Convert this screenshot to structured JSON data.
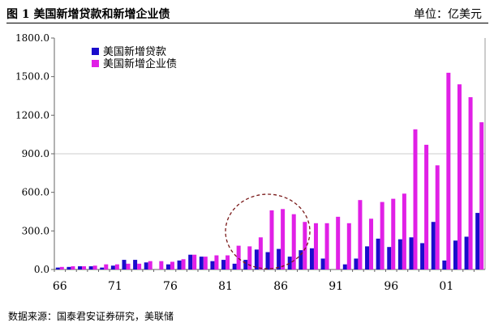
{
  "header": {
    "title": "图 1  美国新增贷款和新增企业债",
    "unit": "单位：亿美元"
  },
  "source": "数据来源：国泰君安证券研究，美联储",
  "chart_data": {
    "type": "bar",
    "title": "图 1  美国新增贷款和新增企业债",
    "ylim": [
      0,
      1800
    ],
    "yticks": [
      "0.0",
      "300.0",
      "600.0",
      "900.0",
      "1200.0",
      "1500.0",
      "1800.0"
    ],
    "xtick_labels": [
      "66",
      "71",
      "76",
      "81",
      "86",
      "91",
      "96",
      "01"
    ],
    "categories": [
      "66",
      "67",
      "68",
      "69",
      "70",
      "71",
      "72",
      "73",
      "74",
      "75",
      "76",
      "77",
      "78",
      "79",
      "80",
      "81",
      "82",
      "83",
      "84",
      "85",
      "86",
      "87",
      "88",
      "89",
      "90",
      "91",
      "92",
      "93",
      "94",
      "95",
      "96",
      "97",
      "98",
      "99",
      "00",
      "01",
      "02",
      "03",
      "04"
    ],
    "legend_position": "top-left",
    "series": [
      {
        "name": "美国新增贷款",
        "color": "#1a0ccc",
        "values": [
          15,
          20,
          25,
          25,
          15,
          30,
          75,
          75,
          55,
          0,
          40,
          70,
          115,
          100,
          65,
          75,
          45,
          75,
          155,
          135,
          160,
          100,
          150,
          165,
          85,
          0,
          40,
          85,
          180,
          240,
          175,
          235,
          250,
          205,
          370,
          70,
          225,
          255,
          440
        ]
      },
      {
        "name": "美国新增企业债",
        "color": "#e020e6",
        "values": [
          20,
          25,
          25,
          30,
          40,
          40,
          45,
          45,
          65,
          65,
          60,
          80,
          115,
          100,
          110,
          110,
          185,
          180,
          250,
          460,
          470,
          430,
          370,
          360,
          360,
          410,
          360,
          540,
          395,
          525,
          550,
          590,
          1090,
          970,
          810,
          1530,
          1440,
          1340,
          1145
        ]
      }
    ],
    "annotation": "dashed circle around 84-88"
  }
}
